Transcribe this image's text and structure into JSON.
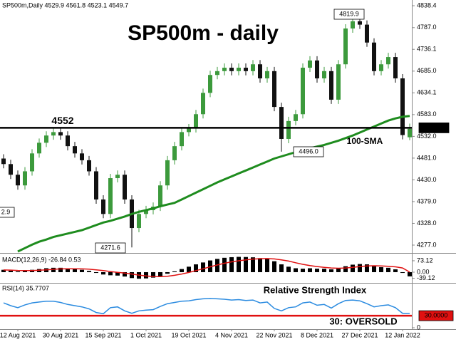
{
  "chart_data": [
    {
      "type": "candlestick",
      "header": "SP500m,Daily  4529.9 4561.8 4523.1 4549.7",
      "title": "SP500m - daily",
      "categories": [
        null,
        null,
        "12 Aug 2021",
        null,
        null,
        null,
        null,
        null,
        "30 Aug 2021",
        null,
        null,
        null,
        null,
        null,
        "15 Sep 2021",
        null,
        null,
        null,
        null,
        null,
        "1 Oct 2021",
        null,
        null,
        null,
        null,
        null,
        "19 Oct 2021",
        null,
        null,
        null,
        null,
        null,
        "4 Nov 2021",
        null,
        null,
        null,
        null,
        null,
        "22 Nov 2021",
        null,
        null,
        null,
        null,
        null,
        "8 Dec 2021",
        null,
        null,
        null,
        null,
        null,
        "27 Dec 2021",
        null,
        null,
        null,
        null,
        null,
        "12 Jan 2022",
        null
      ],
      "open": [
        4480,
        4467,
        4442,
        4417,
        4450,
        4492,
        4517,
        4534,
        4542,
        4534,
        4509,
        4492,
        4476,
        4450,
        4384,
        4350,
        4434,
        4442,
        4384,
        4317,
        4350,
        4359,
        4367,
        4417,
        4476,
        4509,
        4542,
        4551,
        4584,
        4634,
        4676,
        4685,
        4693,
        4685,
        4693,
        4685,
        4701,
        4668,
        4685,
        4601,
        4526,
        4568,
        4584,
        4693,
        4710,
        4668,
        4685,
        4618,
        4701,
        4785,
        4802,
        4794,
        4752,
        4685,
        4701,
        4718,
        4668,
        4529.9
      ],
      "high": [
        4490,
        4477,
        4452,
        4460,
        4502,
        4527,
        4544,
        4552,
        4552,
        4544,
        4519,
        4502,
        4486,
        4460,
        4394,
        4444,
        4452,
        4452,
        4394,
        4360,
        4369,
        4377,
        4427,
        4486,
        4519,
        4552,
        4561,
        4594,
        4644,
        4686,
        4695,
        4703,
        4703,
        4703,
        4703,
        4711,
        4711,
        4695,
        4695,
        4611,
        4578,
        4594,
        4703,
        4720,
        4720,
        4695,
        4695,
        4711,
        4795,
        4819.9,
        4812,
        4804,
        4762,
        4711,
        4728,
        4728,
        4678,
        4561.8
      ],
      "low": [
        4457,
        4432,
        4407,
        4407,
        4440,
        4482,
        4507,
        4524,
        4524,
        4499,
        4482,
        4466,
        4440,
        4374,
        4340,
        4340,
        4424,
        4374,
        4271.6,
        4307,
        4340,
        4349,
        4357,
        4407,
        4466,
        4499,
        4532,
        4541,
        4574,
        4624,
        4666,
        4675,
        4675,
        4675,
        4675,
        4675,
        4658,
        4658,
        4591,
        4496.0,
        4516,
        4558,
        4574,
        4683,
        4658,
        4658,
        4608,
        4608,
        4691,
        4775,
        4784,
        4742,
        4675,
        4675,
        4691,
        4658,
        4525,
        4523.1
      ],
      "close": [
        4467,
        4442,
        4417,
        4450,
        4492,
        4517,
        4534,
        4542,
        4534,
        4509,
        4492,
        4476,
        4450,
        4384,
        4350,
        4434,
        4442,
        4384,
        4317,
        4350,
        4359,
        4367,
        4417,
        4476,
        4509,
        4542,
        4551,
        4584,
        4634,
        4676,
        4685,
        4693,
        4685,
        4693,
        4685,
        4701,
        4668,
        4685,
        4601,
        4526,
        4568,
        4584,
        4693,
        4710,
        4668,
        4685,
        4618,
        4701,
        4785,
        4802,
        4794,
        4752,
        4685,
        4701,
        4718,
        4668,
        4535,
        4549.7
      ],
      "up_color": "#3c9a3c",
      "down_color": "#111111",
      "series": [
        {
          "name": "100-SMA",
          "color": "#1e8c1e",
          "values": [
            null,
            null,
            4262,
            4270,
            4278,
            4285,
            4290,
            4296,
            4300,
            4304,
            4308,
            4312,
            4318,
            4324,
            4330,
            4334,
            4339,
            4344,
            4350,
            4355,
            4359,
            4363,
            4368,
            4372,
            4376,
            4384,
            4392,
            4400,
            4408,
            4416,
            4424,
            4431,
            4438,
            4445,
            4452,
            4459,
            4466,
            4473,
            4480,
            4485,
            4490,
            4495,
            4500,
            4504,
            4508,
            4512,
            4517,
            4522,
            4528,
            4534,
            4541,
            4548,
            4555,
            4562,
            4569,
            4574,
            4578,
            4580
          ]
        }
      ],
      "level": {
        "value": 4552,
        "label": "4552.0"
      },
      "annotations": [
        "4552",
        "4819.9",
        "4496.0",
        "4271.6",
        "2.9"
      ],
      "ylim": [
        4258.6,
        4851.8
      ],
      "yticks": [
        4838.4,
        {
          "value": 4787,
          "label": "4787.0"
        },
        4736.1,
        {
          "value": 4685,
          "label": "4685.0"
        },
        4634.1,
        {
          "value": 4583,
          "label": "4583.0"
        },
        {
          "value": 4532,
          "label": "4532.0"
        },
        {
          "value": 4481,
          "label": "4481.0"
        },
        {
          "value": 4430,
          "label": "4430.0"
        },
        {
          "value": 4379,
          "label": "4379.0"
        },
        {
          "value": 4328,
          "label": "4328.0"
        },
        {
          "value": 4277,
          "label": "4277.0"
        }
      ]
    },
    {
      "type": "macd",
      "label": "MACD(12,26,9) -26.84 0.53",
      "series": [
        {
          "color": "#000000",
          "values": [
            15,
            10,
            5,
            8,
            15,
            20,
            25,
            28,
            28,
            25,
            20,
            15,
            8,
            -5,
            -15,
            -20,
            -22,
            -28,
            -38,
            -42,
            -40,
            -35,
            -25,
            -10,
            5,
            20,
            35,
            50,
            62,
            75,
            85,
            92,
            96,
            98,
            97,
            95,
            90,
            85,
            70,
            50,
            35,
            25,
            22,
            25,
            22,
            22,
            18,
            25,
            38,
            48,
            52,
            50,
            40,
            32,
            28,
            18,
            -5,
            -26.84
          ]
        },
        {
          "color": "#e01010",
          "values": [
            14,
            13,
            11,
            10,
            10,
            12,
            15,
            18,
            21,
            22,
            22,
            21,
            19,
            15,
            10,
            4,
            -1,
            -6,
            -12,
            -19,
            -24,
            -28,
            -29,
            -26,
            -20,
            -12,
            -2,
            10,
            22,
            34,
            46,
            57,
            66,
            73,
            79,
            84,
            86,
            87,
            85,
            79,
            71,
            60,
            50,
            42,
            36,
            31,
            27,
            25,
            27,
            31,
            36,
            40,
            41,
            40,
            38,
            34,
            27,
            0.53
          ]
        }
      ],
      "ylim": [
        -64,
        114
      ],
      "yticks": [
        73.12,
        {
          "value": 0,
          "label": "0.00"
        },
        -39.12
      ]
    },
    {
      "type": "line",
      "label": "RSI(14) 35.7707",
      "series": [
        {
          "name": "Relative Strength Index",
          "color": "#2b8be0",
          "values": [
            62,
            55,
            50,
            57,
            62,
            64,
            66,
            66,
            63,
            58,
            55,
            52,
            47,
            38,
            35,
            50,
            52,
            42,
            36,
            42,
            44,
            45,
            53,
            60,
            63,
            66,
            67,
            70,
            72,
            73,
            72,
            71,
            69,
            70,
            68,
            69,
            62,
            64,
            48,
            42,
            50,
            52,
            62,
            64,
            56,
            58,
            49,
            60,
            68,
            69,
            67,
            60,
            52,
            55,
            57,
            50,
            36,
            35.7707
          ]
        }
      ],
      "level": {
        "value": 30,
        "label": "30.0000",
        "color": "#e01010"
      },
      "annotations": [
        "30: OVERSOLD"
      ],
      "ylim": [
        0,
        110
      ],
      "yticks": [
        0
      ]
    }
  ]
}
